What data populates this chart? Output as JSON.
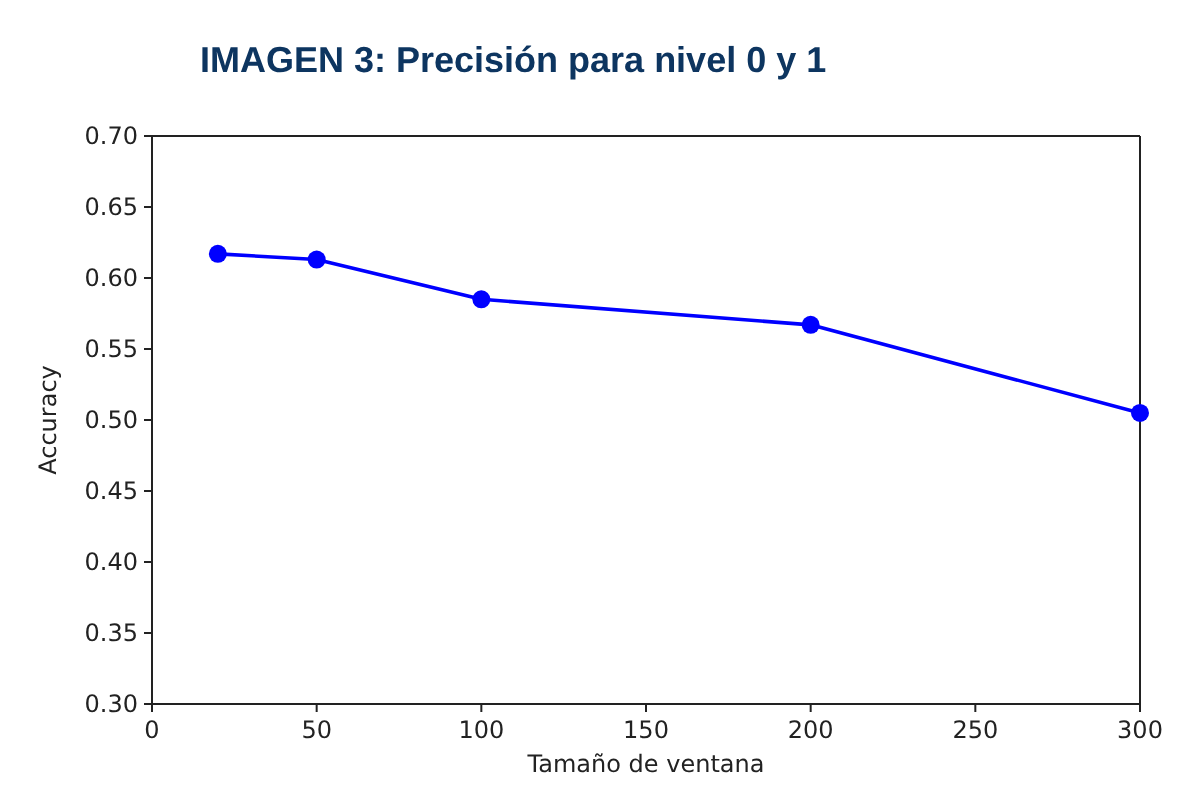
{
  "chart_data": {
    "type": "line",
    "title": "IMAGEN 3: Precisión para nivel 0 y 1",
    "xlabel": "Tamaño de ventana",
    "ylabel": "Accuracy",
    "x": [
      20,
      50,
      100,
      200,
      300
    ],
    "series": [
      {
        "color": "#0000ff",
        "values": [
          0.617,
          0.613,
          0.585,
          0.567,
          0.505
        ]
      }
    ],
    "xlim": [
      0,
      300
    ],
    "xticks": [
      0,
      50,
      100,
      150,
      200,
      250,
      300
    ],
    "ylim": [
      0.3,
      0.7
    ],
    "yticks": [
      {
        "value": 0.3,
        "label": "0.30"
      },
      {
        "value": 0.35,
        "label": "0.35"
      },
      {
        "value": 0.4,
        "label": "0.40"
      },
      {
        "value": 0.45,
        "label": "0.45"
      },
      {
        "value": 0.5,
        "label": "0.50"
      },
      {
        "value": 0.55,
        "label": "0.55"
      },
      {
        "value": 0.6,
        "label": "0.60"
      },
      {
        "value": 0.65,
        "label": "0.65"
      },
      {
        "value": 0.7,
        "label": "0.70"
      }
    ],
    "marker": "circle",
    "line_style": "solid"
  }
}
